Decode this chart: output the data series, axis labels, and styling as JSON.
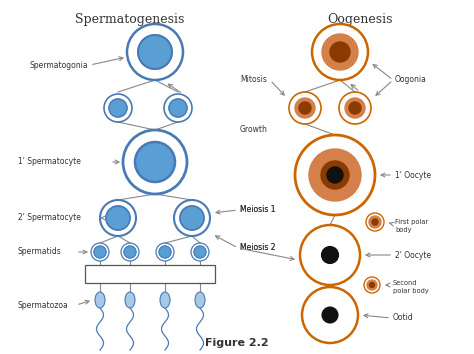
{
  "title_left": "Spermatogenesis",
  "title_right": "Oogenesis",
  "figure_label": "Figure 2.2",
  "bg_color": "#ffffff",
  "blue_outer": "#4a7ab5",
  "blue_fill": "#5a9fd4",
  "orange_outer": "#cc6600",
  "orange_mid": "#d4804a",
  "orange_inner": "#8b3a00",
  "black_dot": "#111111",
  "gray_line": "#888888",
  "text_color": "#333333",
  "sperm_body": "#a8c8e8",
  "sperm_edge": "#4a7ab5"
}
